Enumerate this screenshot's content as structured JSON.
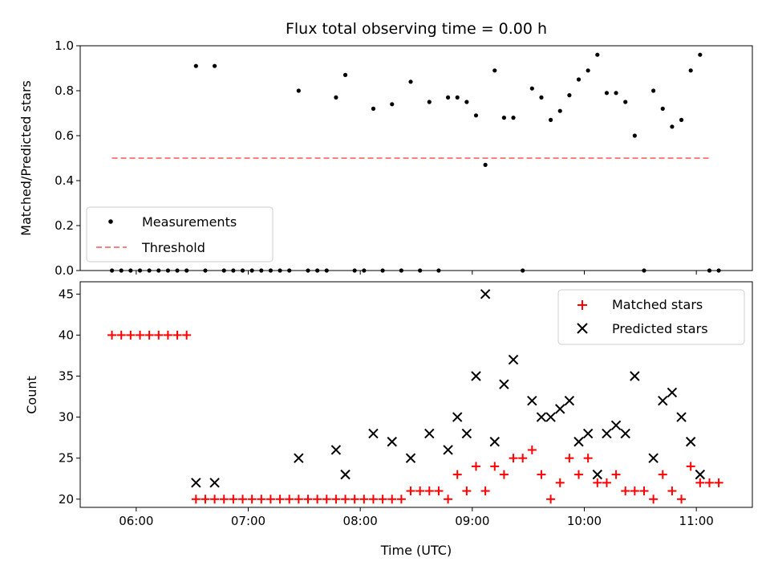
{
  "chart_data": [
    {
      "type": "scatter",
      "title": "Flux total observing time = 0.00 h",
      "xlabel": "",
      "ylabel": "Matched/Predicted stars",
      "xlim": [
        "05:30",
        "11:30"
      ],
      "ylim": [
        0,
        1.0
      ],
      "yticks": [
        "0.0",
        "0.2",
        "0.4",
        "0.6",
        "0.8",
        "1.0"
      ],
      "grid": false,
      "legend_position": "bottom-left",
      "threshold": {
        "name": "Threshold",
        "value": 0.5,
        "x_start": "05:47",
        "x_end": "11:08",
        "color": "#ff7f7f"
      },
      "series": [
        {
          "name": "Measurements",
          "color": "#000000",
          "points": [
            [
              "05:47",
              0
            ],
            [
              "05:52",
              0
            ],
            [
              "05:57",
              0
            ],
            [
              "06:02",
              0
            ],
            [
              "06:07",
              0
            ],
            [
              "06:12",
              0
            ],
            [
              "06:17",
              0
            ],
            [
              "06:22",
              0
            ],
            [
              "06:27",
              0
            ],
            [
              "06:32",
              0.91
            ],
            [
              "06:37",
              0
            ],
            [
              "06:42",
              0.91
            ],
            [
              "06:47",
              0
            ],
            [
              "06:52",
              0
            ],
            [
              "06:57",
              0
            ],
            [
              "07:02",
              0
            ],
            [
              "07:07",
              0
            ],
            [
              "07:12",
              0
            ],
            [
              "07:17",
              0
            ],
            [
              "07:22",
              0
            ],
            [
              "07:27",
              0.8
            ],
            [
              "07:32",
              0
            ],
            [
              "07:37",
              0
            ],
            [
              "07:42",
              0
            ],
            [
              "07:47",
              0.77
            ],
            [
              "07:52",
              0.87
            ],
            [
              "07:57",
              0
            ],
            [
              "08:02",
              0
            ],
            [
              "08:07",
              0.72
            ],
            [
              "08:12",
              0
            ],
            [
              "08:17",
              0.74
            ],
            [
              "08:22",
              0
            ],
            [
              "08:27",
              0.84
            ],
            [
              "08:32",
              0
            ],
            [
              "08:37",
              0.75
            ],
            [
              "08:42",
              0
            ],
            [
              "08:47",
              0.77
            ],
            [
              "08:52",
              0.77
            ],
            [
              "08:57",
              0.75
            ],
            [
              "09:02",
              0.69
            ],
            [
              "09:07",
              0.47
            ],
            [
              "09:12",
              0.89
            ],
            [
              "09:17",
              0.68
            ],
            [
              "09:22",
              0.68
            ],
            [
              "09:27",
              0
            ],
            [
              "09:32",
              0.81
            ],
            [
              "09:37",
              0.77
            ],
            [
              "09:42",
              0.67
            ],
            [
              "09:47",
              0.71
            ],
            [
              "09:52",
              0.78
            ],
            [
              "09:57",
              0.85
            ],
            [
              "10:02",
              0.89
            ],
            [
              "10:07",
              0.96
            ],
            [
              "10:12",
              0.79
            ],
            [
              "10:17",
              0.79
            ],
            [
              "10:22",
              0.75
            ],
            [
              "10:27",
              0.6
            ],
            [
              "10:32",
              0
            ],
            [
              "10:37",
              0.8
            ],
            [
              "10:42",
              0.72
            ],
            [
              "10:47",
              0.64
            ],
            [
              "10:52",
              0.67
            ],
            [
              "10:57",
              0.89
            ],
            [
              "11:02",
              0.96
            ],
            [
              "11:07",
              0
            ],
            [
              "11:12",
              0
            ]
          ]
        }
      ]
    },
    {
      "type": "scatter",
      "title": "",
      "xlabel": "Time (UTC)",
      "ylabel": "Count",
      "xlim": [
        "05:30",
        "11:30"
      ],
      "ylim": [
        19,
        46.5
      ],
      "xticks": [
        "06:00",
        "07:00",
        "08:00",
        "09:00",
        "10:00",
        "11:00"
      ],
      "yticks": [
        "20",
        "25",
        "30",
        "35",
        "40",
        "45"
      ],
      "grid": false,
      "legend_position": "top-right",
      "series": [
        {
          "name": "Matched stars",
          "color": "#ff0000",
          "marker": "plus",
          "points": [
            [
              "05:47",
              40
            ],
            [
              "05:52",
              40
            ],
            [
              "05:57",
              40
            ],
            [
              "06:02",
              40
            ],
            [
              "06:07",
              40
            ],
            [
              "06:12",
              40
            ],
            [
              "06:17",
              40
            ],
            [
              "06:22",
              40
            ],
            [
              "06:27",
              40
            ],
            [
              "06:32",
              20
            ],
            [
              "06:37",
              20
            ],
            [
              "06:42",
              20
            ],
            [
              "06:47",
              20
            ],
            [
              "06:52",
              20
            ],
            [
              "06:57",
              20
            ],
            [
              "07:02",
              20
            ],
            [
              "07:07",
              20
            ],
            [
              "07:12",
              20
            ],
            [
              "07:17",
              20
            ],
            [
              "07:22",
              20
            ],
            [
              "07:27",
              20
            ],
            [
              "07:32",
              20
            ],
            [
              "07:37",
              20
            ],
            [
              "07:42",
              20
            ],
            [
              "07:47",
              20
            ],
            [
              "07:52",
              20
            ],
            [
              "07:57",
              20
            ],
            [
              "08:02",
              20
            ],
            [
              "08:07",
              20
            ],
            [
              "08:12",
              20
            ],
            [
              "08:17",
              20
            ],
            [
              "08:22",
              20
            ],
            [
              "08:27",
              21
            ],
            [
              "08:32",
              21
            ],
            [
              "08:37",
              21
            ],
            [
              "08:42",
              21
            ],
            [
              "08:47",
              20
            ],
            [
              "08:52",
              23
            ],
            [
              "08:57",
              21
            ],
            [
              "09:02",
              24
            ],
            [
              "09:07",
              21
            ],
            [
              "09:12",
              24
            ],
            [
              "09:17",
              23
            ],
            [
              "09:22",
              25
            ],
            [
              "09:27",
              25
            ],
            [
              "09:32",
              26
            ],
            [
              "09:37",
              23
            ],
            [
              "09:42",
              20
            ],
            [
              "09:47",
              22
            ],
            [
              "09:52",
              25
            ],
            [
              "09:57",
              23
            ],
            [
              "10:02",
              25
            ],
            [
              "10:07",
              22
            ],
            [
              "10:12",
              22
            ],
            [
              "10:17",
              23
            ],
            [
              "10:22",
              21
            ],
            [
              "10:27",
              21
            ],
            [
              "10:32",
              21
            ],
            [
              "10:37",
              20
            ],
            [
              "10:42",
              23
            ],
            [
              "10:47",
              21
            ],
            [
              "10:52",
              20
            ],
            [
              "10:57",
              24
            ],
            [
              "11:02",
              22
            ],
            [
              "11:07",
              22
            ],
            [
              "11:12",
              22
            ]
          ]
        },
        {
          "name": "Predicted stars",
          "color": "#000000",
          "marker": "x",
          "points": [
            [
              "06:32",
              22
            ],
            [
              "06:42",
              22
            ],
            [
              "07:27",
              25
            ],
            [
              "07:47",
              26
            ],
            [
              "07:52",
              23
            ],
            [
              "08:07",
              28
            ],
            [
              "08:17",
              27
            ],
            [
              "08:27",
              25
            ],
            [
              "08:37",
              28
            ],
            [
              "08:47",
              26
            ],
            [
              "08:52",
              30
            ],
            [
              "08:57",
              28
            ],
            [
              "09:02",
              35
            ],
            [
              "09:07",
              45
            ],
            [
              "09:12",
              27
            ],
            [
              "09:17",
              34
            ],
            [
              "09:22",
              37
            ],
            [
              "09:32",
              32
            ],
            [
              "09:37",
              30
            ],
            [
              "09:42",
              30
            ],
            [
              "09:47",
              31
            ],
            [
              "09:52",
              32
            ],
            [
              "09:57",
              27
            ],
            [
              "10:02",
              28
            ],
            [
              "10:07",
              23
            ],
            [
              "10:12",
              28
            ],
            [
              "10:17",
              29
            ],
            [
              "10:22",
              28
            ],
            [
              "10:27",
              35
            ],
            [
              "10:37",
              25
            ],
            [
              "10:42",
              32
            ],
            [
              "10:47",
              33
            ],
            [
              "10:52",
              30
            ],
            [
              "10:57",
              27
            ],
            [
              "11:02",
              23
            ]
          ]
        }
      ]
    }
  ]
}
